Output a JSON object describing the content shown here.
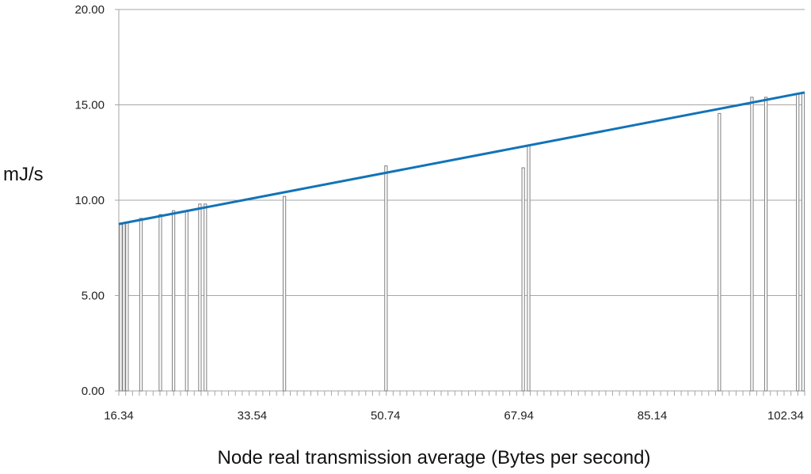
{
  "chart_data": {
    "type": "bar",
    "title": "",
    "xlabel": "Node real transmission average (Bytes per second)",
    "ylabel": "mJ/s",
    "ylim": [
      0,
      20
    ],
    "xlim": [
      16.34,
      104.8
    ],
    "y_ticks": [
      "0.00",
      "5.00",
      "10.00",
      "15.00",
      "20.00"
    ],
    "x_ticks": [
      "16.34",
      "33.54",
      "50.74",
      "67.94",
      "85.14",
      "102.34"
    ],
    "grid": true,
    "legend": "none",
    "bar_color": "#ffffff",
    "bar_edge_color": "#7f7f7f",
    "trend_color": "#1273b8",
    "points": [
      {
        "x": 16.6,
        "y": 8.75
      },
      {
        "x": 17.0,
        "y": 8.8
      },
      {
        "x": 17.4,
        "y": 8.8
      },
      {
        "x": 19.2,
        "y": 9.05
      },
      {
        "x": 21.7,
        "y": 9.25
      },
      {
        "x": 23.4,
        "y": 9.45
      },
      {
        "x": 25.1,
        "y": 9.45
      },
      {
        "x": 26.8,
        "y": 9.8
      },
      {
        "x": 27.5,
        "y": 9.8
      },
      {
        "x": 37.7,
        "y": 10.2
      },
      {
        "x": 50.8,
        "y": 11.8
      },
      {
        "x": 68.5,
        "y": 11.7
      },
      {
        "x": 69.2,
        "y": 12.9
      },
      {
        "x": 93.8,
        "y": 14.55
      },
      {
        "x": 98.0,
        "y": 15.4
      },
      {
        "x": 99.8,
        "y": 15.4
      },
      {
        "x": 103.9,
        "y": 15.6
      },
      {
        "x": 104.6,
        "y": 15.6
      }
    ],
    "trendline": {
      "x": [
        16.34,
        104.8
      ],
      "y": [
        8.75,
        15.65
      ]
    }
  }
}
